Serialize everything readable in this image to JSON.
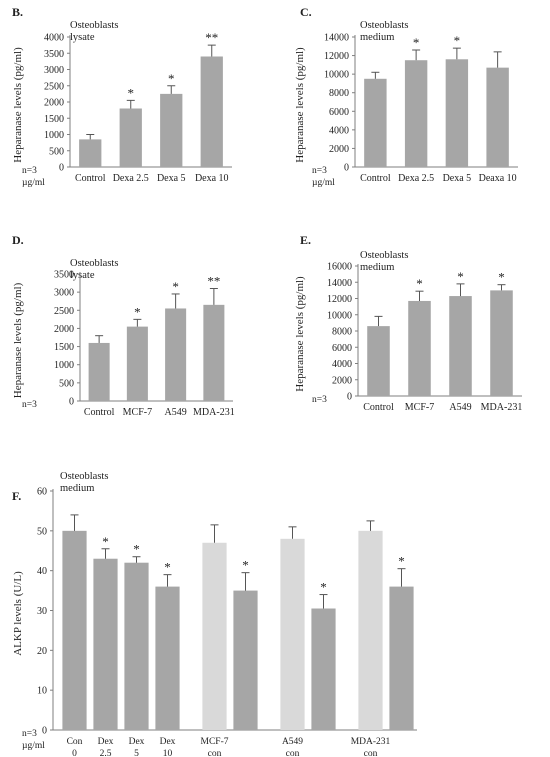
{
  "colors": {
    "bar": "#a6a6a6",
    "bar_light": "#d9d9d9",
    "axis": "#7f7f7f",
    "text": "#222222"
  },
  "chart_data": [
    {
      "id": "B",
      "type": "bar",
      "panel_label": "B.",
      "title_lines": [
        "Osteoblasts",
        "lysate"
      ],
      "ylabel": "Heparanase levels (pg/ml)",
      "categories": [
        "Control",
        "Dexa 2.5",
        "Dexa 5",
        "Dexa 10"
      ],
      "values": [
        850,
        1800,
        2250,
        3400
      ],
      "errors": [
        150,
        250,
        250,
        350
      ],
      "significance": [
        "",
        "*",
        "*",
        "**"
      ],
      "ylim": [
        0,
        4000
      ],
      "yticks": [
        0,
        500,
        1000,
        1500,
        2000,
        2500,
        3000,
        3500,
        4000
      ],
      "footnotes": [
        "n=3",
        "µg/ml"
      ],
      "grid": false
    },
    {
      "id": "C",
      "type": "bar",
      "panel_label": "C.",
      "title_lines": [
        "Osteoblasts",
        "medium"
      ],
      "ylabel": "Heparanase levels (pg/ml)",
      "categories": [
        "Control",
        "Dexa 2.5",
        "Dexa 5",
        "Deaxa 10"
      ],
      "values": [
        9500,
        11500,
        11600,
        10700
      ],
      "errors": [
        700,
        1100,
        1200,
        1700
      ],
      "significance": [
        "",
        "*",
        "*",
        ""
      ],
      "ylim": [
        0,
        14000
      ],
      "yticks": [
        0,
        2000,
        4000,
        6000,
        8000,
        10000,
        12000,
        14000
      ],
      "footnotes": [
        "n=3",
        "µg/ml"
      ],
      "grid": false
    },
    {
      "id": "D",
      "type": "bar",
      "panel_label": "D.",
      "title_lines": [
        "Osteoblasts",
        "lysate"
      ],
      "ylabel": "Heparanase levels (pg/ml)",
      "categories": [
        "Control",
        "MCF-7",
        "A549",
        "MDA-231"
      ],
      "values": [
        1600,
        2050,
        2550,
        2650
      ],
      "errors": [
        200,
        200,
        400,
        450
      ],
      "significance": [
        "",
        "*",
        "*",
        "**"
      ],
      "ylim": [
        0,
        3500
      ],
      "yticks": [
        0,
        500,
        1000,
        1500,
        2000,
        2500,
        3000,
        3500
      ],
      "footnotes": [
        "n=3"
      ],
      "grid": false
    },
    {
      "id": "E",
      "type": "bar",
      "panel_label": "E.",
      "title_lines": [
        "Osteoblasts",
        "medium"
      ],
      "ylabel": "Heparanase levels (pg/ml)",
      "categories": [
        "Control",
        "MCF-7",
        "A549",
        "MDA-231"
      ],
      "values": [
        8600,
        11700,
        12300,
        13000
      ],
      "errors": [
        1200,
        1200,
        1500,
        700
      ],
      "significance": [
        "",
        "*",
        "*",
        "*"
      ],
      "ylim": [
        0,
        16000
      ],
      "yticks": [
        0,
        2000,
        4000,
        6000,
        8000,
        10000,
        12000,
        14000,
        16000
      ],
      "footnotes": [
        "n=3"
      ],
      "grid": false
    },
    {
      "id": "F",
      "type": "bar",
      "panel_label": "F.",
      "title_lines": [
        "Osteoblasts",
        "medium"
      ],
      "ylabel": "ALKP levels (U/L)",
      "categories": [
        "Con 0",
        "Dex 2.5",
        "Dex 5",
        "Dex 10",
        "MCF-7 con",
        "MCF-7",
        "A549 con",
        "A549",
        "MDA-231 con",
        "MDA-231"
      ],
      "tick_lines": [
        [
          "Con",
          "0"
        ],
        [
          "Dex",
          "2.5"
        ],
        [
          "Dex",
          "5"
        ],
        [
          "Dex",
          "10"
        ],
        [
          "MCF-7",
          "con"
        ],
        [
          "",
          ""
        ],
        [
          "A549",
          "con"
        ],
        [
          "",
          ""
        ],
        [
          "MDA-231",
          "con"
        ],
        [
          "",
          ""
        ]
      ],
      "values": [
        50,
        43,
        42,
        36,
        47,
        35,
        48,
        30.5,
        50,
        36
      ],
      "errors": [
        4,
        2.5,
        1.5,
        3,
        4.5,
        4.5,
        3,
        3.5,
        2.5,
        4.5
      ],
      "light": [
        false,
        false,
        false,
        false,
        true,
        false,
        true,
        false,
        true,
        false
      ],
      "significance": [
        "",
        "*",
        "*",
        "*",
        "",
        "*",
        "",
        "*",
        "",
        "*"
      ],
      "ylim": [
        0,
        60
      ],
      "yticks": [
        0,
        10,
        20,
        30,
        40,
        50,
        60
      ],
      "footnotes": [
        "n=3",
        "µg/ml"
      ],
      "grid": false
    }
  ]
}
